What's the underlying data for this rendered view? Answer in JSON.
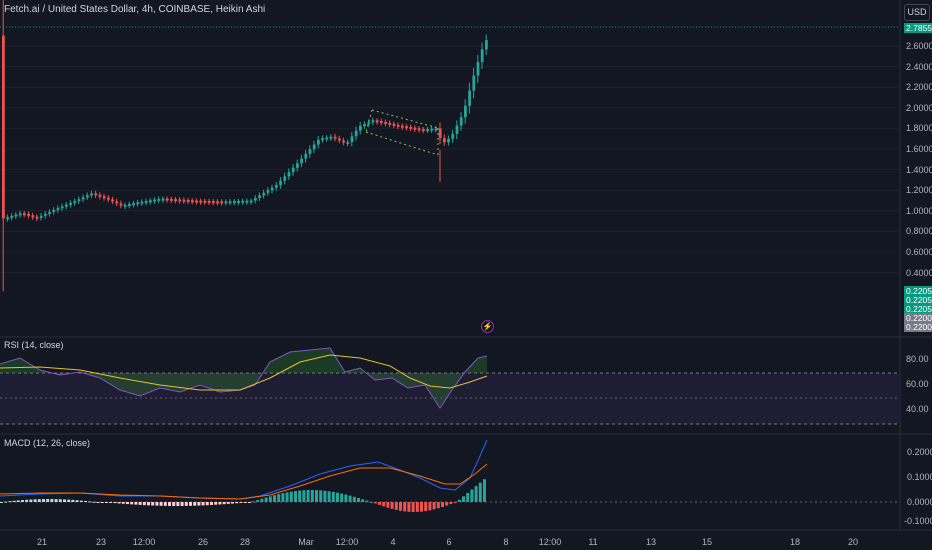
{
  "header": {
    "title": "Fetch.ai / United States Dollar, 4h, COINBASE, Heikin Ashi",
    "currency_button": "USD"
  },
  "price_axis": {
    "ticks": [
      "2.6000",
      "2.4000",
      "2.2000",
      "2.0000",
      "1.8000",
      "1.6000",
      "1.4000",
      "1.2000",
      "1.0000",
      "0.8000",
      "0.6000",
      "0.4000"
    ],
    "last_price": "2.7855",
    "volume_tags": [
      "0.2205",
      "0.2205",
      "0.2205",
      "0.2200",
      "0.2200"
    ]
  },
  "rsi": {
    "label": "RSI (14, close)",
    "ticks": [
      "80.00",
      "60.00",
      "40.00"
    ]
  },
  "macd": {
    "label": "MACD (12, 26, close)",
    "ticks": [
      "0.2000",
      "0.1000",
      "0.0000",
      "-0.1000"
    ]
  },
  "time_axis": {
    "labels": [
      "21",
      "23",
      "12:00",
      "26",
      "28",
      "Mar",
      "12:00",
      "4",
      "6",
      "8",
      "12:00",
      "11",
      "13",
      "15",
      "18",
      "20"
    ]
  },
  "colors": {
    "background": "#131722",
    "up": "#26a69a",
    "down": "#ef5350",
    "rsi_line": "#7e57c2",
    "rsi_ma": "#e6c229",
    "macd_line": "#2962ff",
    "signal_line": "#ff6d00",
    "last_price_tag": "#089981"
  },
  "icons": {
    "alert": "lightning-bolt-icon"
  }
}
